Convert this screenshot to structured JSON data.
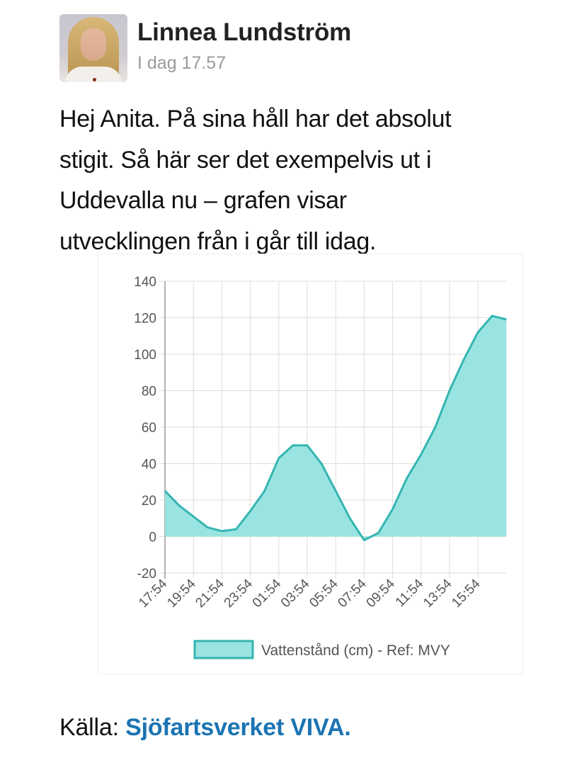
{
  "post": {
    "author": {
      "name": "Linnea Lundström",
      "avatar_icon": "profile-photo"
    },
    "timestamp": "I dag 17.57",
    "body": "Hej Anita. På sina håll har det absolut stigit. Så här ser det exempelvis ut i Uddevalla nu – grafen visar utvecklingen från i går till idag.",
    "body_lines": [
      "Hej Anita. På sina håll har det absolut",
      "stigit. Så här ser det exempelvis ut i",
      "Uddevalla nu – grafen visar",
      "utvecklingen från i går till idag."
    ],
    "source_label": "Källa:",
    "source_link": "Sjöfartsverket VIVA."
  },
  "colors": {
    "series_fill": "#99e4e1",
    "series_line": "#35b5b1",
    "grid": "#dddddd",
    "axis_text": "#555555",
    "link": "#1b74b3"
  },
  "chart_data": {
    "type": "area",
    "title": "",
    "xlabel": "",
    "ylabel": "",
    "ylim": [
      -20,
      140
    ],
    "yticks": [
      140,
      120,
      100,
      80,
      60,
      40,
      20,
      0,
      -20
    ],
    "xtick_labels": [
      "17:54",
      "19:54",
      "21:54",
      "23:54",
      "01:54",
      "03:54",
      "05:54",
      "07:54",
      "09:54",
      "11:54",
      "13:54",
      "15:54"
    ],
    "grid": true,
    "legend_position": "bottom",
    "legend": [
      "Vattenstånd (cm) - Ref: MVY"
    ],
    "x": [
      "17:54",
      "18:54",
      "19:54",
      "20:54",
      "21:54",
      "22:54",
      "23:54",
      "00:54",
      "01:54",
      "02:54",
      "03:54",
      "04:54",
      "05:54",
      "06:54",
      "07:54",
      "08:54",
      "09:54",
      "10:54",
      "11:54",
      "12:54",
      "13:54",
      "14:54",
      "15:54",
      "16:54",
      "17:54"
    ],
    "series": [
      {
        "name": "Vattenstånd (cm) - Ref: MVY",
        "values": [
          25,
          17,
          11,
          5,
          3,
          4,
          14,
          25,
          43,
          50,
          50,
          40,
          25,
          10,
          -2,
          2,
          15,
          32,
          45,
          60,
          80,
          97,
          112,
          121,
          119
        ]
      }
    ]
  }
}
